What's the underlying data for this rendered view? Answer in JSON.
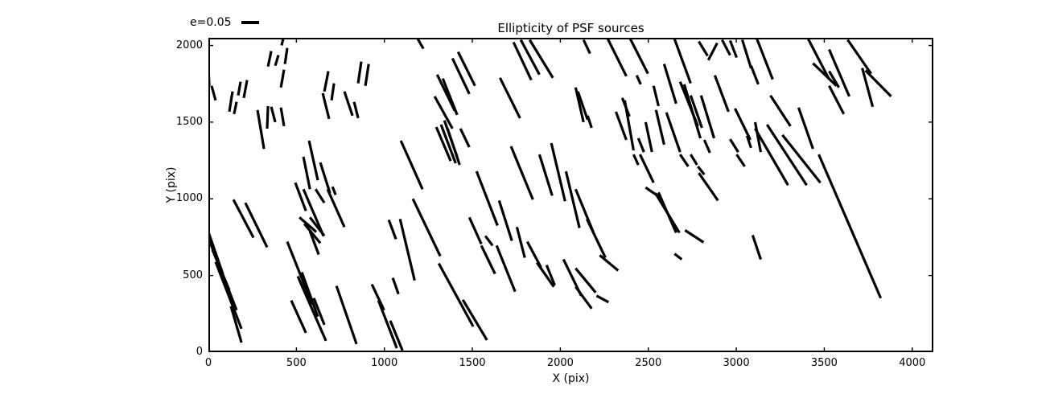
{
  "figure": {
    "background": "#ffffff",
    "line_color": "#000000"
  },
  "chart_data": {
    "type": "quiver",
    "title": "Ellipticity of PSF sources",
    "xlabel": "X (pix)",
    "ylabel": "Y (pix)",
    "xlim": [
      0,
      4120
    ],
    "ylim": [
      0,
      2050
    ],
    "x_ticks": [
      0,
      500,
      1000,
      1500,
      2000,
      2500,
      3000,
      3500,
      4000
    ],
    "y_ticks": [
      0,
      500,
      1000,
      1500,
      2000
    ],
    "grid": false,
    "legend": {
      "label": "e=0.05",
      "position": "upper-left-outside",
      "frame": false,
      "ref_length_units": 100
    },
    "whisker_color": "#000000",
    "segments": [
      [
        426,
        2050,
        416,
        2000
      ],
      [
        357,
        1963,
        339,
        1863
      ],
      [
        398,
        1937,
        380,
        1868
      ],
      [
        448,
        1984,
        435,
        1879
      ],
      [
        430,
        1842,
        412,
        1726
      ],
      [
        183,
        1763,
        169,
        1674
      ],
      [
        220,
        1774,
        201,
        1658
      ],
      [
        137,
        1700,
        119,
        1568
      ],
      [
        160,
        1632,
        146,
        1553
      ],
      [
        0,
        1855,
        5,
        1737
      ],
      [
        18,
        1737,
        41,
        1642
      ],
      [
        682,
        1832,
        659,
        1700
      ],
      [
        714,
        1753,
        700,
        1642
      ],
      [
        869,
        1895,
        851,
        1753
      ],
      [
        911,
        1879,
        892,
        1737
      ],
      [
        773,
        1700,
        819,
        1542
      ],
      [
        650,
        1689,
        686,
        1521
      ],
      [
        828,
        1632,
        851,
        1526
      ],
      [
        279,
        1579,
        316,
        1326
      ],
      [
        339,
        1605,
        334,
        1458
      ],
      [
        357,
        1600,
        380,
        1500
      ],
      [
        412,
        1595,
        430,
        1474
      ],
      [
        572,
        1379,
        622,
        1121
      ],
      [
        540,
        1274,
        577,
        1063
      ],
      [
        636,
        1237,
        691,
        1037
      ],
      [
        494,
        1105,
        554,
        921
      ],
      [
        705,
        1079,
        723,
        1026
      ],
      [
        1190,
        2042,
        1222,
        1979
      ],
      [
        1387,
        1916,
        1483,
        1684
      ],
      [
        1419,
        1958,
        1515,
        1737
      ],
      [
        1300,
        1810,
        1400,
        1574
      ],
      [
        1332,
        1784,
        1414,
        1547
      ],
      [
        1286,
        1668,
        1387,
        1458
      ],
      [
        1657,
        1789,
        1771,
        1526
      ],
      [
        1734,
        2021,
        1835,
        1774
      ],
      [
        1775,
        2037,
        1881,
        1810
      ],
      [
        1826,
        2037,
        1958,
        1789
      ],
      [
        1295,
        1468,
        1377,
        1247
      ],
      [
        1322,
        1484,
        1405,
        1232
      ],
      [
        1359,
        1458,
        1428,
        1221
      ],
      [
        1341,
        1511,
        1414,
        1274
      ],
      [
        1432,
        1458,
        1483,
        1337
      ],
      [
        1094,
        1379,
        1217,
        1063
      ],
      [
        1524,
        1179,
        1643,
        826
      ],
      [
        1652,
        989,
        1725,
        726
      ],
      [
        1720,
        1342,
        1844,
        995
      ],
      [
        1881,
        1289,
        1954,
        1021
      ],
      [
        1949,
        1363,
        2027,
        984
      ],
      [
        2032,
        1179,
        2109,
        810
      ],
      [
        1162,
        1000,
        1318,
        626
      ],
      [
        1089,
        868,
        1172,
        468
      ],
      [
        1483,
        879,
        1551,
        705
      ],
      [
        1574,
        758,
        1615,
        695
      ],
      [
        1753,
        816,
        1798,
        616
      ],
      [
        1309,
        579,
        1505,
        168
      ],
      [
        1446,
        342,
        1583,
        79
      ],
      [
        1551,
        695,
        1629,
        511
      ],
      [
        1638,
        695,
        1743,
        395
      ],
      [
        1812,
        721,
        1890,
        553
      ],
      [
        1867,
        584,
        1963,
        426
      ],
      [
        1922,
        568,
        1968,
        437
      ],
      [
        2018,
        605,
        2119,
        368
      ],
      [
        1034,
        205,
        1103,
        11
      ],
      [
        142,
        995,
        256,
        747
      ],
      [
        210,
        974,
        334,
        684
      ],
      [
        0,
        747,
        142,
        311
      ],
      [
        9,
        721,
        160,
        274
      ],
      [
        23,
        668,
        119,
        405
      ],
      [
        41,
        589,
        188,
        153
      ],
      [
        0,
        784,
        82,
        511
      ],
      [
        448,
        721,
        590,
        311
      ],
      [
        531,
        521,
        622,
        232
      ],
      [
        517,
        879,
        613,
        784
      ],
      [
        577,
        879,
        659,
        758
      ],
      [
        545,
        837,
        636,
        711
      ],
      [
        508,
        495,
        622,
        195
      ],
      [
        471,
        337,
        554,
        126
      ],
      [
        599,
        353,
        659,
        179
      ],
      [
        622,
        195,
        668,
        74
      ],
      [
        128,
        300,
        188,
        63
      ],
      [
        540,
        1063,
        654,
        758
      ],
      [
        609,
        1063,
        659,
        974
      ],
      [
        677,
        1063,
        773,
        816
      ],
      [
        577,
        789,
        627,
        637
      ],
      [
        728,
        432,
        842,
        53
      ],
      [
        929,
        442,
        998,
        274
      ],
      [
        966,
        337,
        1071,
        26
      ],
      [
        1025,
        863,
        1066,
        737
      ],
      [
        1048,
        484,
        1080,
        379
      ],
      [
        2132,
        2037,
        2169,
        1947
      ],
      [
        2270,
        2042,
        2375,
        1800
      ],
      [
        2398,
        2042,
        2498,
        1816
      ],
      [
        2434,
        1805,
        2457,
        1747
      ],
      [
        2649,
        2042,
        2741,
        1753
      ],
      [
        2787,
        2026,
        2837,
        1932
      ],
      [
        2892,
        2016,
        2841,
        1905
      ],
      [
        2919,
        2037,
        2965,
        1937
      ],
      [
        2965,
        2032,
        3002,
        1921
      ],
      [
        3034,
        2037,
        3084,
        1853
      ],
      [
        3084,
        1868,
        3125,
        1747
      ],
      [
        2590,
        1879,
        2658,
        1621
      ],
      [
        2681,
        1763,
        2782,
        1474
      ],
      [
        2704,
        1747,
        2796,
        1395
      ],
      [
        2741,
        1674,
        2805,
        1463
      ],
      [
        2878,
        1805,
        2956,
        1568
      ],
      [
        2800,
        1674,
        2874,
        1395
      ],
      [
        2993,
        1589,
        3080,
        1384
      ],
      [
        2087,
        1726,
        2132,
        1500
      ],
      [
        2100,
        1700,
        2155,
        1516
      ],
      [
        2155,
        1542,
        2178,
        1463
      ],
      [
        2316,
        1568,
        2375,
        1384
      ],
      [
        2366,
        1642,
        2416,
        1316
      ],
      [
        2352,
        1658,
        2393,
        1537
      ],
      [
        2443,
        1395,
        2475,
        1305
      ],
      [
        2485,
        1500,
        2521,
        1305
      ],
      [
        2530,
        1737,
        2558,
        1605
      ],
      [
        2544,
        1579,
        2590,
        1353
      ],
      [
        2603,
        1563,
        2681,
        1305
      ],
      [
        2818,
        1384,
        2850,
        1300
      ],
      [
        2965,
        1389,
        3011,
        1305
      ],
      [
        3061,
        1411,
        3084,
        1332
      ],
      [
        3107,
        1500,
        3139,
        1305
      ],
      [
        2087,
        1063,
        2187,
        784
      ],
      [
        2151,
        868,
        2256,
        616
      ],
      [
        2224,
        632,
        2329,
        532
      ],
      [
        2416,
        1289,
        2443,
        1221
      ],
      [
        2453,
        1289,
        2530,
        1105
      ],
      [
        2485,
        1074,
        2558,
        1016
      ],
      [
        2540,
        1037,
        2677,
        779
      ],
      [
        2558,
        1042,
        2658,
        779
      ],
      [
        2681,
        1289,
        2727,
        1211
      ],
      [
        2741,
        1289,
        2777,
        1221
      ],
      [
        2782,
        1211,
        2818,
        1158
      ],
      [
        2787,
        1168,
        2896,
        989
      ],
      [
        3002,
        1289,
        3048,
        1211
      ],
      [
        2709,
        795,
        2814,
        716
      ],
      [
        3093,
        763,
        3139,
        605
      ],
      [
        2649,
        642,
        2690,
        605
      ],
      [
        2087,
        547,
        2201,
        389
      ],
      [
        2087,
        426,
        2178,
        284
      ],
      [
        2206,
        368,
        2274,
        326
      ],
      [
        3116,
        2047,
        3207,
        1779
      ],
      [
        3194,
        1674,
        3308,
        1474
      ],
      [
        3409,
        2042,
        3528,
        1779
      ],
      [
        3436,
        1884,
        3569,
        1737
      ],
      [
        3528,
        1974,
        3642,
        1668
      ],
      [
        3528,
        1832,
        3583,
        1726
      ],
      [
        3528,
        1737,
        3611,
        1553
      ],
      [
        3633,
        2037,
        3766,
        1816
      ],
      [
        3734,
        1837,
        3880,
        1668
      ],
      [
        3716,
        1853,
        3775,
        1600
      ],
      [
        3107,
        1458,
        3294,
        1089
      ],
      [
        3175,
        1484,
        3400,
        1089
      ],
      [
        3262,
        1416,
        3478,
        1105
      ],
      [
        3354,
        1595,
        3436,
        1326
      ],
      [
        3469,
        1289,
        3821,
        353
      ]
    ]
  }
}
